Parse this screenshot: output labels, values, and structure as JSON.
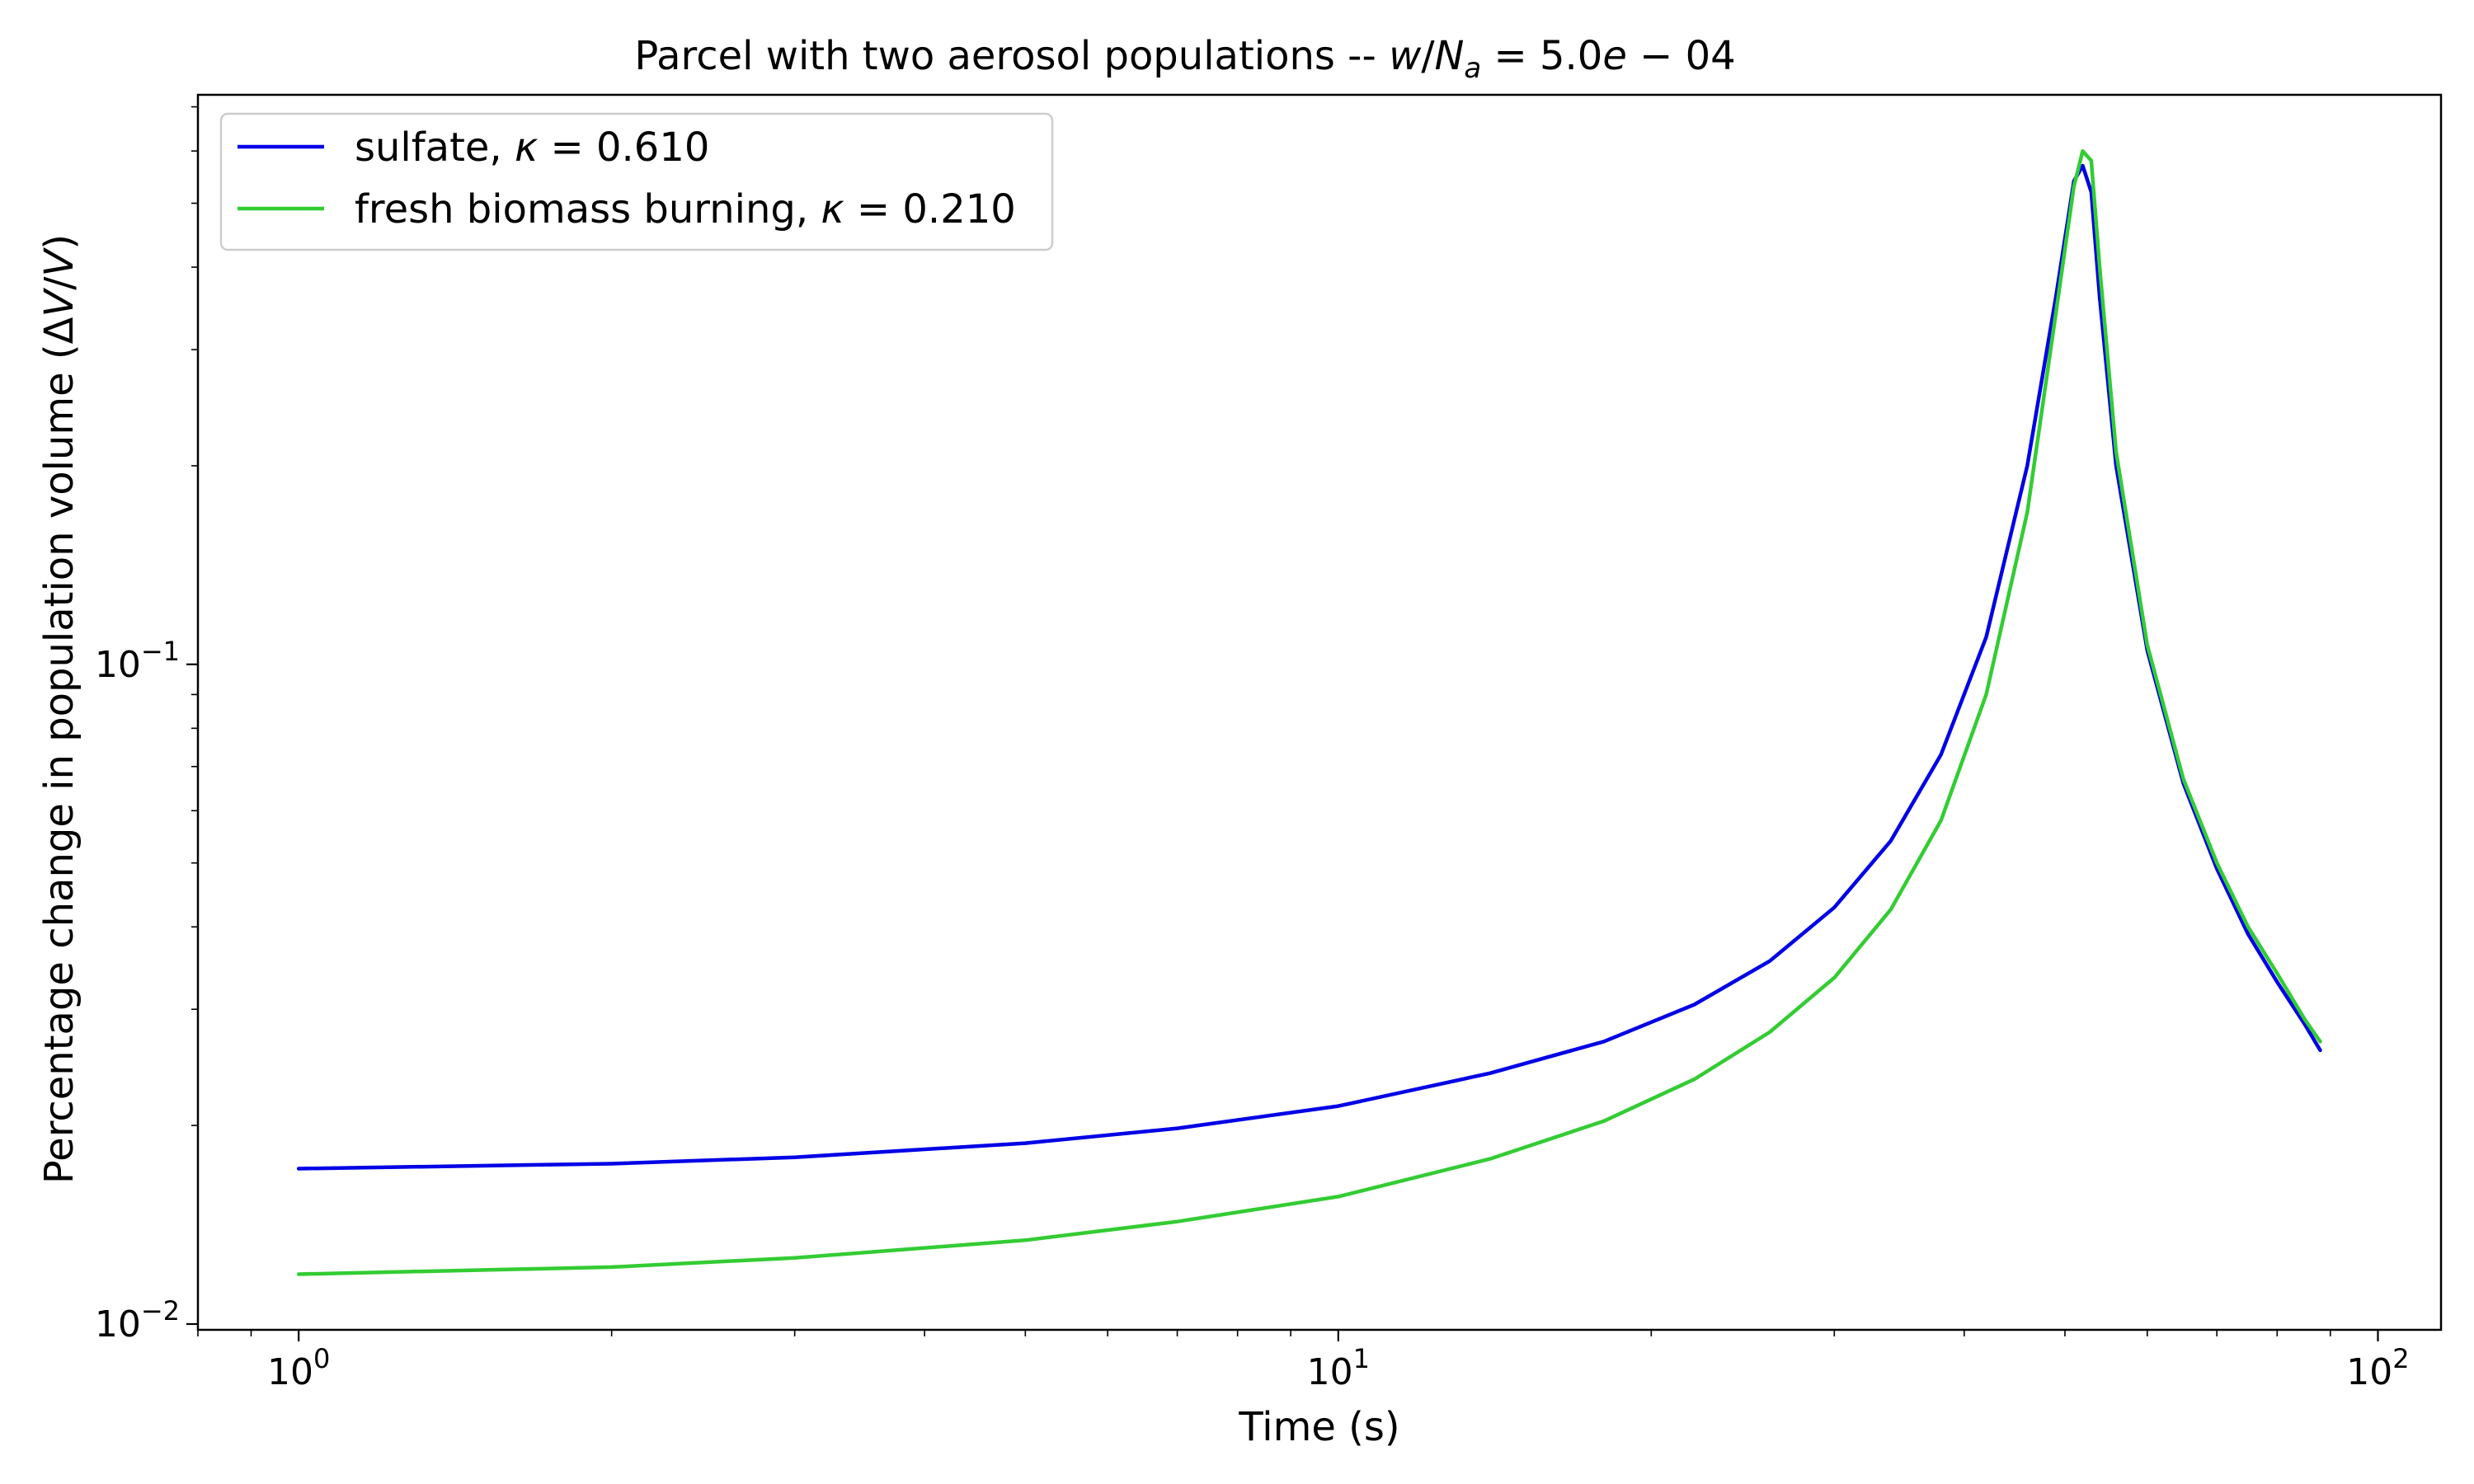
{
  "chart_data": {
    "type": "line",
    "title": "Parcel with two aerosol populations -- w/Nₐ = 5.0e − 04",
    "title_parts": {
      "prefix": "Parcel with two aerosol populations -- ",
      "w": "w",
      "slash": "/",
      "N": "N",
      "sub": "a",
      "rest": " = 5.0",
      "e": "e",
      "tail": " − 04"
    },
    "xlabel": "Time (s)",
    "ylabel": "Percentage change in population volume (ΔV/V)",
    "ylabel_parts": {
      "prefix": "Percentage change in population volume (Δ",
      "v1": "V",
      "slash": "/",
      "v2": "V",
      "close": ")"
    },
    "x_scale": "log",
    "y_scale": "log",
    "xlim": [
      0.8,
      115
    ],
    "ylim": [
      0.0098,
      0.73
    ],
    "x_ticks": [
      {
        "value": 1,
        "label_base": "10",
        "label_exp": "0"
      },
      {
        "value": 10,
        "label_base": "10",
        "label_exp": "1"
      },
      {
        "value": 100,
        "label_base": "10",
        "label_exp": "2"
      }
    ],
    "y_ticks": [
      {
        "value": 0.01,
        "label_base": "10",
        "label_exp": "−2"
      },
      {
        "value": 0.1,
        "label_base": "10",
        "label_exp": "−1"
      }
    ],
    "grid": false,
    "legend_position": "upper-left",
    "series": [
      {
        "name": "sulfate, κ = 0.610",
        "name_parts": {
          "prefix": "sulfate, ",
          "kappa": "κ",
          "rest": " = 0.610"
        },
        "color": "#0000e6",
        "x": [
          1,
          2,
          3,
          5,
          7,
          10,
          14,
          18,
          22,
          26,
          30,
          34,
          38,
          42,
          46,
          49,
          51,
          52,
          53,
          54,
          56,
          60,
          65,
          70,
          75,
          80,
          85,
          88
        ],
        "y": [
          0.0172,
          0.0175,
          0.0179,
          0.0188,
          0.0198,
          0.0214,
          0.024,
          0.0268,
          0.0305,
          0.0355,
          0.0428,
          0.054,
          0.073,
          0.11,
          0.2,
          0.36,
          0.54,
          0.57,
          0.52,
          0.36,
          0.2,
          0.105,
          0.066,
          0.049,
          0.039,
          0.033,
          0.0285,
          0.026
        ]
      },
      {
        "name": "fresh biomass burning, κ = 0.210",
        "name_parts": {
          "prefix": "fresh biomass burning, ",
          "kappa": "κ",
          "rest": " = 0.210"
        },
        "color": "#33cc33",
        "x": [
          1,
          2,
          3,
          5,
          7,
          10,
          14,
          18,
          22,
          26,
          30,
          34,
          38,
          42,
          46,
          49,
          51,
          52,
          53,
          54,
          56,
          60,
          65,
          70,
          75,
          80,
          85,
          88
        ],
        "y": [
          0.0119,
          0.0122,
          0.0126,
          0.0134,
          0.0143,
          0.0156,
          0.0178,
          0.0203,
          0.0235,
          0.0277,
          0.0335,
          0.0425,
          0.058,
          0.09,
          0.17,
          0.34,
          0.53,
          0.6,
          0.58,
          0.4,
          0.21,
          0.107,
          0.067,
          0.05,
          0.04,
          0.034,
          0.029,
          0.0268
        ]
      }
    ]
  }
}
